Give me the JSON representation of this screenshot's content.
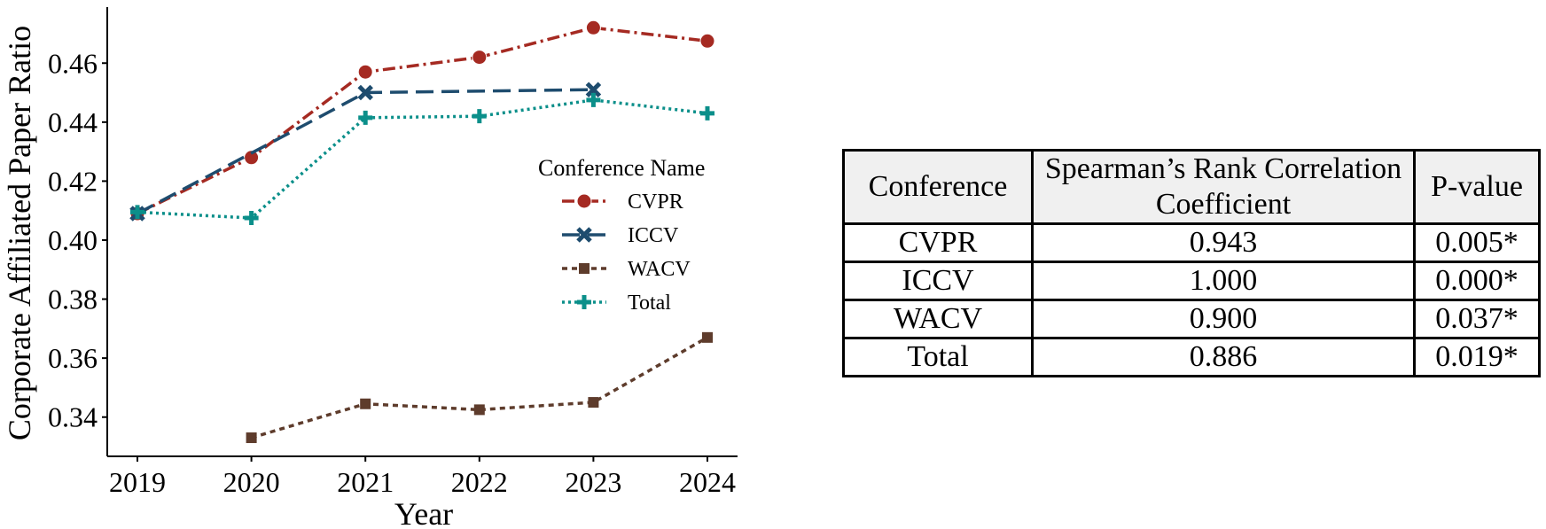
{
  "colors": {
    "CVPR": "#a52a22",
    "ICCV": "#1e4c6e",
    "WACV": "#5e3c2c",
    "Total": "#0b8f8a"
  },
  "chart_data": {
    "type": "line",
    "xlabel": "Year",
    "ylabel": "Corporate Affiliated Paper Ratio",
    "x_ticks": [
      "2019",
      "2020",
      "2021",
      "2022",
      "2023",
      "2024"
    ],
    "y_ticks": [
      "0.34",
      "0.36",
      "0.38",
      "0.40",
      "0.42",
      "0.44",
      "0.46"
    ],
    "ylim": [
      0.327,
      0.479
    ],
    "grid": false,
    "legend": {
      "title": "Conference Name",
      "placement": "center-right"
    },
    "series": [
      {
        "name": "CVPR",
        "marker": "circle",
        "dash": "dash-dot",
        "x": [
          2019,
          2020,
          2021,
          2022,
          2023,
          2024
        ],
        "values": [
          0.409,
          0.428,
          0.457,
          0.462,
          0.472,
          0.4675
        ]
      },
      {
        "name": "ICCV",
        "marker": "x",
        "dash": "long-dash",
        "x": [
          2019,
          2021,
          2023
        ],
        "values": [
          0.409,
          0.45,
          0.451
        ]
      },
      {
        "name": "WACV",
        "marker": "square",
        "dash": "short-dash",
        "x": [
          2020,
          2021,
          2022,
          2023,
          2024
        ],
        "values": [
          0.333,
          0.3445,
          0.3425,
          0.345,
          0.367
        ]
      },
      {
        "name": "Total",
        "marker": "plus",
        "dash": "dotted",
        "x": [
          2019,
          2020,
          2021,
          2022,
          2023,
          2024
        ],
        "values": [
          0.4095,
          0.4075,
          0.4415,
          0.442,
          0.4475,
          0.443
        ]
      }
    ]
  },
  "table": {
    "headers": [
      "Conference",
      "Spearman’s Rank Correlation Coefficient",
      "P-value"
    ],
    "rows": [
      [
        "CVPR",
        "0.943",
        "0.005*"
      ],
      [
        "ICCV",
        "1.000",
        "0.000*"
      ],
      [
        "WACV",
        "0.900",
        "0.037*"
      ],
      [
        "Total",
        "0.886",
        "0.019*"
      ]
    ]
  }
}
